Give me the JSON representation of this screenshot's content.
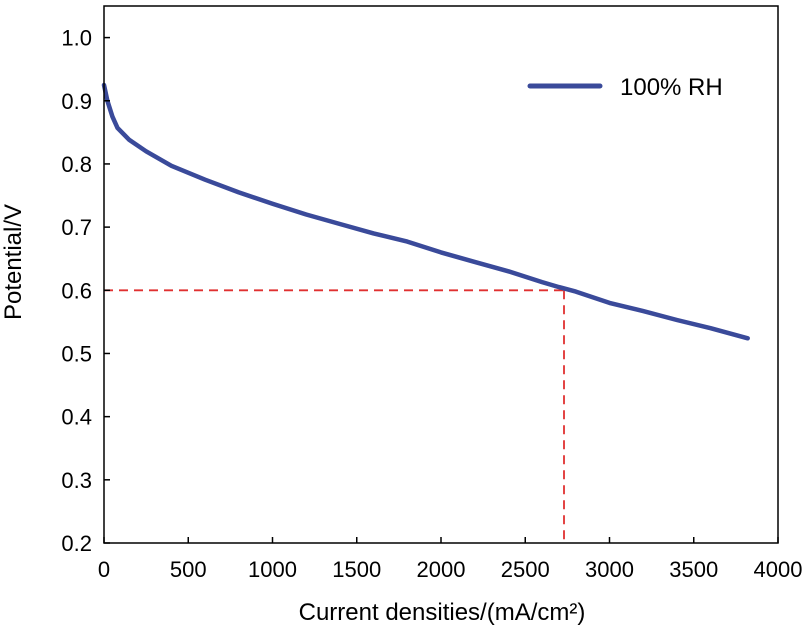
{
  "chart_data": {
    "type": "line",
    "xlabel": "Current densities/(mA/cm²)",
    "ylabel": "Potential/V",
    "xlim": [
      0,
      4000
    ],
    "ylim": [
      0.2,
      1.05
    ],
    "x_ticks": [
      0,
      500,
      1000,
      1500,
      2000,
      2500,
      3000,
      3500,
      4000
    ],
    "y_ticks": [
      0.2,
      0.3,
      0.4,
      0.5,
      0.6,
      0.7,
      0.8,
      0.9,
      1.0
    ],
    "x_tick_labels": [
      "0",
      "500",
      "1000",
      "1500",
      "2000",
      "2500",
      "3000",
      "3500",
      "4000"
    ],
    "y_tick_labels": [
      "0.2",
      "0.3",
      "0.4",
      "0.5",
      "0.6",
      "0.7",
      "0.8",
      "0.9",
      "1.0"
    ],
    "grid": false,
    "legend_position": "top-right",
    "series": [
      {
        "name": "100% RH",
        "color": "#3a4a9a",
        "x": [
          0,
          20,
          50,
          80,
          150,
          250,
          400,
          600,
          800,
          1000,
          1200,
          1400,
          1600,
          1800,
          2000,
          2200,
          2400,
          2600,
          2700,
          2800,
          3000,
          3200,
          3400,
          3600,
          3820
        ],
        "y": [
          0.925,
          0.9,
          0.875,
          0.857,
          0.838,
          0.82,
          0.797,
          0.775,
          0.755,
          0.737,
          0.72,
          0.705,
          0.69,
          0.677,
          0.66,
          0.645,
          0.63,
          0.613,
          0.605,
          0.598,
          0.58,
          0.567,
          0.553,
          0.54,
          0.524
        ]
      }
    ],
    "reference_point": {
      "x": 2730,
      "y": 0.6,
      "color": "#e03030"
    }
  }
}
